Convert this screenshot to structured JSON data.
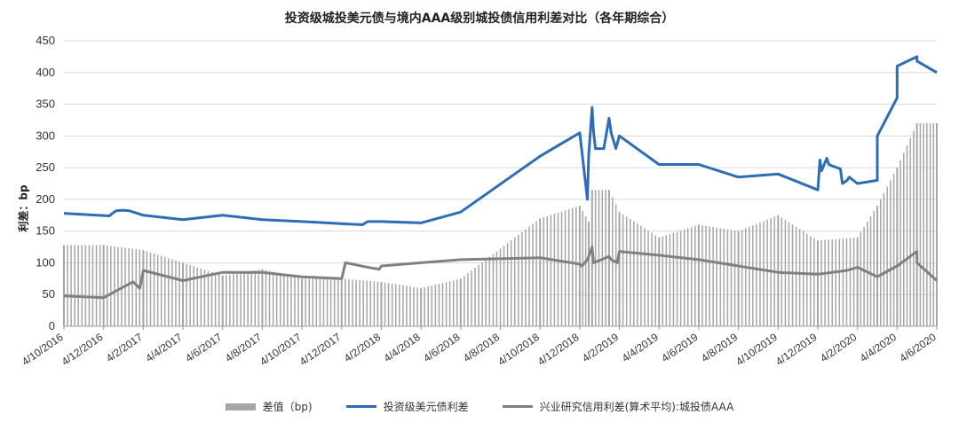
{
  "chart_data": {
    "type": "line",
    "title": "投资级城投美元债与境内AAA级别城投债信用利差对比（各年期综合）",
    "ylabel": "利差：bp",
    "ylim": [
      0,
      450
    ],
    "yticks": [
      0,
      50,
      100,
      150,
      200,
      250,
      300,
      350,
      400,
      450
    ],
    "x_start": "4/10/2016",
    "x_end": "4/6/2020",
    "x_ticks": [
      "4/10/2016",
      "4/12/2016",
      "4/2/2017",
      "4/4/2017",
      "4/6/2017",
      "4/8/2017",
      "4/10/2017",
      "4/12/2017",
      "4/2/2018",
      "4/4/2018",
      "4/6/2018",
      "4/8/2018",
      "4/10/2018",
      "4/12/2018",
      "4/2/2019",
      "4/4/2019",
      "4/6/2019",
      "4/8/2019",
      "4/10/2019",
      "4/12/2019",
      "4/2/2020",
      "4/4/2020",
      "4/6/2020"
    ],
    "grid": "horizontal",
    "legend_position": "bottom",
    "series": [
      {
        "name": "差值（bp)",
        "kind": "bar",
        "color": "#a6a6a6",
        "x": [
          "4/10/2016",
          "4/12/2016",
          "4/2/2017",
          "4/4/2017",
          "4/6/2017",
          "4/8/2017",
          "4/10/2017",
          "4/12/2017",
          "4/2/2018",
          "4/4/2018",
          "4/6/2018",
          "7/1/2018",
          "8/1/2018",
          "4/10/2018",
          "4/12/2018",
          "1/1/2019",
          "4/2/2019",
          "4/4/2019",
          "4/6/2019",
          "4/8/2019",
          "4/10/2019",
          "4/12/2019",
          "4/2/2020",
          "4/3/2020",
          "4/4/2020",
          "4/5/2020",
          "4/6/2020"
        ],
        "values": [
          128,
          128,
          120,
          100,
          80,
          90,
          75,
          75,
          70,
          60,
          75,
          165,
          215,
          170,
          190,
          215,
          180,
          140,
          160,
          150,
          175,
          135,
          140,
          190,
          250,
          320,
          320
        ]
      },
      {
        "name": "投资级美元债利差",
        "kind": "line",
        "color": "#2e6db6",
        "x": [
          "4/10/2016",
          "6/1/2016",
          "7/1/2016",
          "8/1/2016",
          "10/1/2016",
          "12/1/2016",
          "4/2/2017",
          "4/4/2017",
          "4/6/2017",
          "4/8/2017",
          "4/10/2017",
          "10/15/2017",
          "12/1/2017",
          "4/2/2018",
          "4/4/2018",
          "4/6/2018",
          "6/20/2018",
          "7/1/2018",
          "7/20/2018",
          "8/1/2018",
          "8/15/2018",
          "9/1/2018",
          "4/10/2018",
          "11/15/2018",
          "4/12/2018",
          "1/1/2019",
          "1/20/2019",
          "4/2/2019",
          "3/1/2019",
          "4/4/2019",
          "5/1/2019",
          "5/15/2019",
          "4/6/2019",
          "7/1/2019",
          "7/20/2019",
          "4/8/2019",
          "9/1/2019",
          "4/10/2019",
          "11/1/2019",
          "11/20/2019",
          "4/12/2019",
          "1/1/2020",
          "1/20/2020",
          "4/2/2020",
          "4/3/2020",
          "4/3/2020",
          "4/4/2020",
          "4/4/2020",
          "4/5/2020",
          "4/5/2020",
          "4/6/2020"
        ],
        "values": [
          178,
          174,
          178,
          182,
          183,
          182,
          175,
          168,
          175,
          168,
          165,
          160,
          165,
          165,
          163,
          180,
          200,
          270,
          315,
          345,
          305,
          280,
          268,
          280,
          305,
          328,
          305,
          300,
          280,
          255,
          262,
          245,
          255,
          265,
          255,
          235,
          252,
          240,
          248,
          225,
          215,
          230,
          235,
          225,
          230,
          300,
          360,
          410,
          425,
          418,
          400
        ]
      },
      {
        "name": "兴业研究信用利差(算术平均):城投债AAA",
        "kind": "line",
        "color": "#808080",
        "x": [
          "4/10/2016",
          "4/12/2016",
          "1/1/2017",
          "4/2/2017",
          "3/1/2017",
          "4/4/2017",
          "5/15/2017",
          "4/6/2017",
          "4/8/2017",
          "4/10/2017",
          "4/12/2017",
          "1/1/2018",
          "4/2/2018",
          "3/15/2018",
          "4/4/2018",
          "5/1/2018",
          "4/6/2018",
          "6/20/2018",
          "7/1/2018",
          "8/1/2018",
          "8/15/2018",
          "4/10/2018",
          "4/12/2018",
          "1/1/2019",
          "1/20/2019",
          "4/2/2019",
          "3/15/2019",
          "4/4/2019",
          "4/6/2019",
          "4/8/2019",
          "4/10/2019",
          "4/12/2019",
          "1/1/2020",
          "4/2/2020",
          "4/3/2020",
          "4/4/2020",
          "4/5/2020",
          "4/5/2020",
          "4/6/2020"
        ],
        "values": [
          48,
          45,
          70,
          88,
          60,
          72,
          100,
          85,
          85,
          78,
          75,
          92,
          95,
          90,
          100,
          95,
          105,
          105,
          110,
          125,
          100,
          108,
          98,
          110,
          105,
          118,
          100,
          112,
          105,
          95,
          85,
          82,
          88,
          93,
          78,
          95,
          118,
          100,
          72
        ]
      }
    ]
  }
}
